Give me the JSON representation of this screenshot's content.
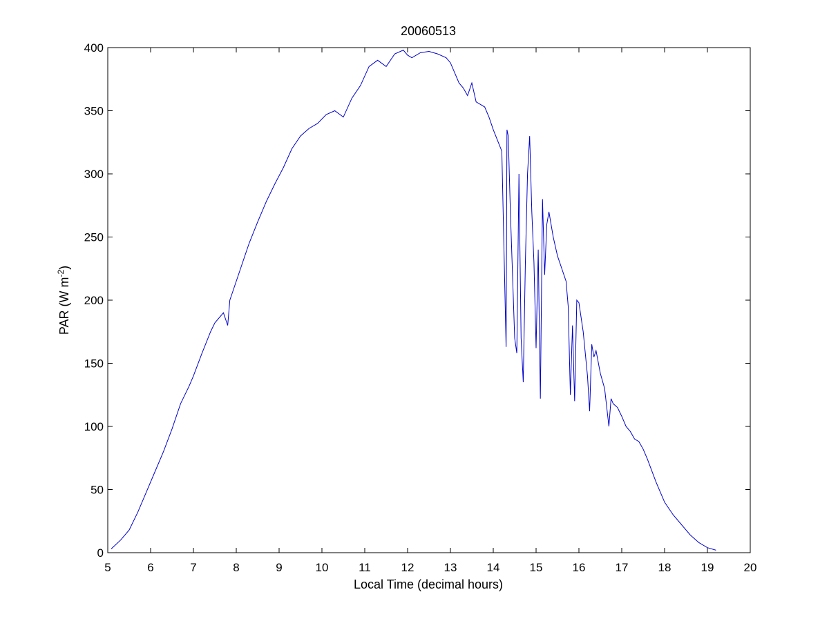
{
  "chart_data": {
    "type": "line",
    "title": "20060513",
    "xlabel": "Local Time (decimal hours)",
    "ylabel": {
      "prefix": "PAR (W m",
      "superscript": "-2",
      "suffix": ")"
    },
    "xlim": [
      5,
      20
    ],
    "ylim": [
      0,
      400
    ],
    "xticks": [
      "5",
      "6",
      "7",
      "8",
      "9",
      "10",
      "11",
      "12",
      "13",
      "14",
      "15",
      "16",
      "17",
      "18",
      "19",
      "20"
    ],
    "yticks": [
      "0",
      "50",
      "100",
      "150",
      "200",
      "250",
      "300",
      "350",
      "400"
    ],
    "grid": false,
    "colors": {
      "line": "#0000cc",
      "axes": "#000000",
      "background": "#ffffff"
    },
    "series": [
      {
        "x": [
          5.08,
          5.3,
          5.5,
          5.7,
          5.9,
          6.1,
          6.3,
          6.5,
          6.7,
          6.9,
          7.0,
          7.2,
          7.4,
          7.5,
          7.7,
          7.8,
          7.85,
          7.9,
          8.1,
          8.3,
          8.5,
          8.7,
          8.9,
          9.1,
          9.3,
          9.5,
          9.7,
          9.9,
          10.1,
          10.3,
          10.5,
          10.7,
          10.9,
          11.1,
          11.3,
          11.5,
          11.7,
          11.9,
          12.0,
          12.1,
          12.3,
          12.5,
          12.7,
          12.9,
          13.0,
          13.1,
          13.2,
          13.3,
          13.4,
          13.5,
          13.6,
          13.7,
          13.8,
          13.9,
          14.0,
          14.2,
          14.3,
          14.32,
          14.35,
          14.4,
          14.5,
          14.55,
          14.6,
          14.65,
          14.7,
          14.75,
          14.8,
          14.85,
          14.9,
          14.95,
          15.0,
          15.05,
          15.1,
          15.15,
          15.2,
          15.25,
          15.3,
          15.4,
          15.5,
          15.6,
          15.7,
          15.75,
          15.8,
          15.85,
          15.9,
          15.95,
          16.0,
          16.1,
          16.2,
          16.25,
          16.3,
          16.35,
          16.4,
          16.5,
          16.6,
          16.7,
          16.75,
          16.8,
          16.9,
          17.0,
          17.1,
          17.2,
          17.3,
          17.4,
          17.5,
          17.6,
          17.7,
          17.8,
          17.9,
          18.0,
          18.2,
          18.4,
          18.6,
          18.8,
          19.0,
          19.2
        ],
        "y": [
          3,
          10,
          18,
          32,
          48,
          64,
          80,
          98,
          118,
          132,
          140,
          158,
          175,
          182,
          190,
          180,
          200,
          205,
          225,
          245,
          262,
          278,
          292,
          305,
          320,
          330,
          336,
          340,
          347,
          350,
          345,
          360,
          370,
          385,
          390,
          385,
          395,
          398,
          394,
          392,
          396,
          397,
          395,
          392,
          388,
          380,
          372,
          368,
          362,
          372,
          357,
          355,
          353,
          345,
          335,
          318,
          163,
          335,
          330,
          270,
          170,
          158,
          300,
          170,
          135,
          230,
          300,
          330,
          270,
          230,
          162,
          240,
          122,
          280,
          220,
          260,
          270,
          250,
          235,
          225,
          215,
          195,
          125,
          180,
          120,
          200,
          198,
          175,
          140,
          112,
          165,
          155,
          160,
          142,
          130,
          100,
          122,
          118,
          115,
          108,
          100,
          96,
          90,
          88,
          82,
          74,
          65,
          56,
          48,
          40,
          30,
          22,
          14,
          8,
          4,
          2
        ]
      }
    ]
  }
}
